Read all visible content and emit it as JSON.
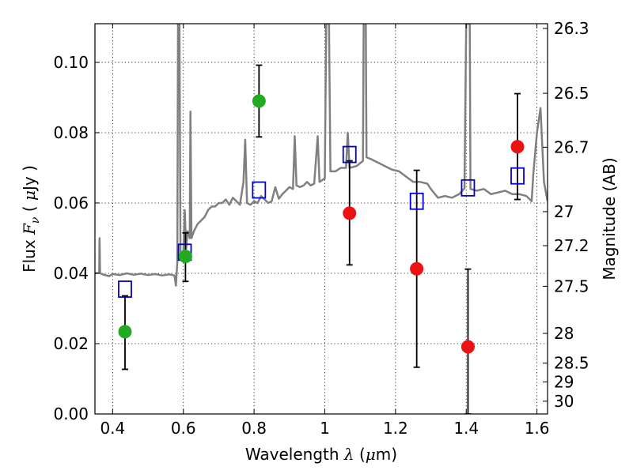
{
  "chart_data": {
    "type": "scatter",
    "xlabel": {
      "text": "Wavelength",
      "symbol": "λ",
      "unit_open": "(",
      "unit_mu": "μ",
      "unit_rest": "m)"
    },
    "ylabel": {
      "text": "Flux",
      "symbol": "F",
      "sub": "ν",
      "unit_open": "(",
      "unit_mu": "μ",
      "unit_rest": "Jy )"
    },
    "y2label": "Magnitude (AB)",
    "xlim": [
      0.35,
      1.63
    ],
    "ylim": [
      0.0,
      0.111
    ],
    "grid": true,
    "x_ticks": [
      {
        "value": 0.4,
        "label": "0.4"
      },
      {
        "value": 0.6,
        "label": "0.6"
      },
      {
        "value": 0.8,
        "label": "0.8"
      },
      {
        "value": 1.0,
        "label": "1"
      },
      {
        "value": 1.2,
        "label": "1.2"
      },
      {
        "value": 1.4,
        "label": "1.4"
      },
      {
        "value": 1.6,
        "label": "1.6"
      }
    ],
    "y_ticks": [
      {
        "value": 0.0,
        "label": "0.00"
      },
      {
        "value": 0.02,
        "label": "0.02"
      },
      {
        "value": 0.04,
        "label": "0.04"
      },
      {
        "value": 0.06,
        "label": "0.06"
      },
      {
        "value": 0.08,
        "label": "0.08"
      },
      {
        "value": 0.1,
        "label": "0.10"
      }
    ],
    "y2_ticks": [
      {
        "mag": 26.3,
        "label": "26.3"
      },
      {
        "mag": 26.5,
        "label": "26.5"
      },
      {
        "mag": 26.7,
        "label": "26.7"
      },
      {
        "mag": 27.0,
        "label": "27"
      },
      {
        "mag": 27.2,
        "label": "27.2"
      },
      {
        "mag": 27.5,
        "label": "27.5"
      },
      {
        "mag": 28.0,
        "label": "28"
      },
      {
        "mag": 28.5,
        "label": "28.5"
      },
      {
        "mag": 29.0,
        "label": "29"
      },
      {
        "mag": 30.0,
        "label": "30"
      }
    ],
    "series": [
      {
        "kind": "spectrum",
        "color": "#808080",
        "points": [
          [
            0.35,
            0.04
          ],
          [
            0.362,
            0.0402
          ],
          [
            0.363,
            0.05
          ],
          [
            0.3645,
            0.04
          ],
          [
            0.375,
            0.0396
          ],
          [
            0.39,
            0.0392
          ],
          [
            0.4,
            0.0398
          ],
          [
            0.42,
            0.0395
          ],
          [
            0.44,
            0.04
          ],
          [
            0.46,
            0.0396
          ],
          [
            0.48,
            0.0399
          ],
          [
            0.5,
            0.0395
          ],
          [
            0.52,
            0.0398
          ],
          [
            0.54,
            0.0394
          ],
          [
            0.56,
            0.0397
          ],
          [
            0.575,
            0.0394
          ],
          [
            0.579,
            0.0365
          ],
          [
            0.583,
            0.043
          ],
          [
            0.585,
            0.111
          ],
          [
            0.589,
            0.111
          ],
          [
            0.592,
            0.046
          ],
          [
            0.6,
            0.0452
          ],
          [
            0.604,
            0.058
          ],
          [
            0.608,
            0.047
          ],
          [
            0.612,
            0.052
          ],
          [
            0.618,
            0.05
          ],
          [
            0.62,
            0.086
          ],
          [
            0.623,
            0.05
          ],
          [
            0.63,
            0.052
          ],
          [
            0.64,
            0.054
          ],
          [
            0.65,
            0.055
          ],
          [
            0.66,
            0.056
          ],
          [
            0.67,
            0.058
          ],
          [
            0.68,
            0.059
          ],
          [
            0.69,
            0.059
          ],
          [
            0.7,
            0.06
          ],
          [
            0.71,
            0.06
          ],
          [
            0.72,
            0.061
          ],
          [
            0.73,
            0.0595
          ],
          [
            0.74,
            0.0615
          ],
          [
            0.75,
            0.0605
          ],
          [
            0.76,
            0.0595
          ],
          [
            0.77,
            0.066
          ],
          [
            0.775,
            0.078
          ],
          [
            0.78,
            0.06
          ],
          [
            0.79,
            0.0595
          ],
          [
            0.8,
            0.0605
          ],
          [
            0.81,
            0.06
          ],
          [
            0.82,
            0.062
          ],
          [
            0.83,
            0.061
          ],
          [
            0.84,
            0.06
          ],
          [
            0.85,
            0.0605
          ],
          [
            0.86,
            0.0645
          ],
          [
            0.87,
            0.0612
          ],
          [
            0.88,
            0.0625
          ],
          [
            0.89,
            0.0635
          ],
          [
            0.9,
            0.0645
          ],
          [
            0.91,
            0.064
          ],
          [
            0.915,
            0.079
          ],
          [
            0.92,
            0.065
          ],
          [
            0.93,
            0.0645
          ],
          [
            0.94,
            0.065
          ],
          [
            0.95,
            0.066
          ],
          [
            0.96,
            0.065
          ],
          [
            0.97,
            0.0655
          ],
          [
            0.98,
            0.079
          ],
          [
            0.985,
            0.066
          ],
          [
            1.0,
            0.067
          ],
          [
            1.004,
            0.111
          ],
          [
            1.012,
            0.111
          ],
          [
            1.016,
            0.069
          ],
          [
            1.03,
            0.069
          ],
          [
            1.045,
            0.07
          ],
          [
            1.06,
            0.07
          ],
          [
            1.065,
            0.08
          ],
          [
            1.07,
            0.07
          ],
          [
            1.09,
            0.0705
          ],
          [
            1.108,
            0.072
          ],
          [
            1.11,
            0.111
          ],
          [
            1.116,
            0.111
          ],
          [
            1.118,
            0.073
          ],
          [
            1.13,
            0.0725
          ],
          [
            1.15,
            0.0715
          ],
          [
            1.17,
            0.0705
          ],
          [
            1.19,
            0.0695
          ],
          [
            1.21,
            0.069
          ],
          [
            1.23,
            0.0675
          ],
          [
            1.25,
            0.066
          ],
          [
            1.27,
            0.066
          ],
          [
            1.29,
            0.0655
          ],
          [
            1.3,
            0.064
          ],
          [
            1.32,
            0.0615
          ],
          [
            1.34,
            0.062
          ],
          [
            1.36,
            0.0615
          ],
          [
            1.38,
            0.0625
          ],
          [
            1.395,
            0.0642
          ],
          [
            1.4,
            0.111
          ],
          [
            1.41,
            0.111
          ],
          [
            1.412,
            0.064
          ],
          [
            1.43,
            0.0635
          ],
          [
            1.45,
            0.064
          ],
          [
            1.47,
            0.0625
          ],
          [
            1.49,
            0.063
          ],
          [
            1.51,
            0.0635
          ],
          [
            1.53,
            0.0625
          ],
          [
            1.55,
            0.0625
          ],
          [
            1.57,
            0.062
          ],
          [
            1.585,
            0.0605
          ],
          [
            1.59,
            0.0685
          ],
          [
            1.6,
            0.08
          ],
          [
            1.61,
            0.087
          ],
          [
            1.62,
            0.066
          ],
          [
            1.63,
            0.0605
          ]
        ]
      },
      {
        "kind": "model-photometry",
        "marker": "open-square",
        "color": "#0000cc",
        "x": [
          0.435,
          0.604,
          0.814,
          1.07,
          1.26,
          1.405,
          1.545
        ],
        "y": [
          0.0355,
          0.046,
          0.0637,
          0.0738,
          0.0605,
          0.0643,
          0.0677
        ]
      },
      {
        "kind": "observed",
        "marker": "circle",
        "color": "#22aa22",
        "x": [
          0.435,
          0.606,
          0.814
        ],
        "y": [
          0.0234,
          0.0448,
          0.089
        ],
        "err_low": [
          0.0127,
          0.0377,
          0.0788
        ],
        "err_high": [
          0.0336,
          0.0515,
          0.0992
        ]
      },
      {
        "kind": "observed",
        "marker": "circle",
        "color": "#ee1111",
        "x": [
          1.07,
          1.26,
          1.405,
          1.545
        ],
        "y": [
          0.0571,
          0.0413,
          0.0191,
          0.076
        ],
        "err_low": [
          0.0424,
          0.0133,
          0.0,
          0.061
        ],
        "err_high": [
          0.072,
          0.0693,
          0.0412,
          0.0911
        ]
      }
    ]
  }
}
